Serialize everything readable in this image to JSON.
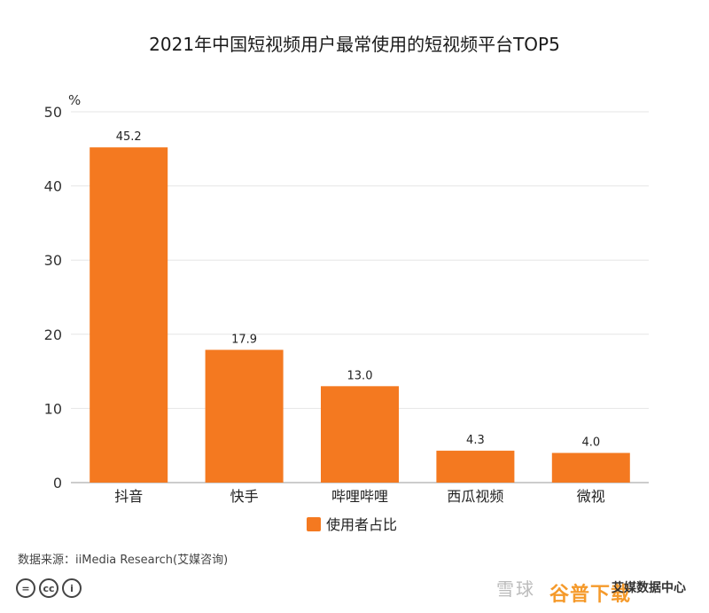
{
  "chart_data": {
    "type": "bar",
    "title": "2021年中国短视频用户最常使用的短视频平台TOP5",
    "unit_label": "%",
    "categories": [
      "抖音",
      "快手",
      "哔哩哔哩",
      "西瓜视频",
      "微视"
    ],
    "series": [
      {
        "name": "使用者占比",
        "values": [
          45.2,
          17.9,
          13.0,
          4.3,
          4.0
        ],
        "labels": [
          "45.2",
          "17.9",
          "13.0",
          "4.3",
          "4.0"
        ]
      }
    ],
    "ylim": [
      0,
      50
    ],
    "yticks": [
      0,
      10,
      20,
      30,
      40,
      50
    ],
    "grid": true,
    "legend_position": "bottom",
    "bar_color": "#f47920"
  },
  "footer": {
    "source": "数据来源：iiMedia Research(艾媒咨询)",
    "cc_icons": [
      "=",
      "cc",
      "i"
    ],
    "watermark": "雪球",
    "watermark_site": "谷普下载",
    "logo_text": "艾媒数据中心"
  }
}
